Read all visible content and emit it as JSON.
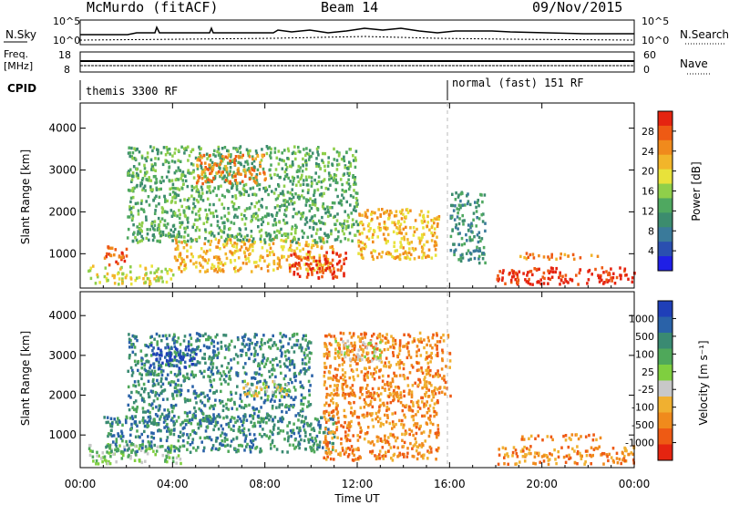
{
  "header": {
    "station": "McMurdo (fitACF)",
    "beam": "Beam 14",
    "date": "09/Nov/2015"
  },
  "summary_panels": {
    "nsky_label": "N.Sky",
    "nsky_ticks": [
      "10^5",
      "10^0"
    ],
    "nsearch_label": "N.Search",
    "nsearch_ticks": [
      "10^5",
      "10^0"
    ],
    "freq_label_1": "Freq.",
    "freq_label_2": "[MHz]",
    "freq_ticks": [
      "18",
      "8"
    ],
    "nave_label": "Nave",
    "nave_ticks": [
      "60",
      "0"
    ],
    "cpid_label": "CPID",
    "cpid_modes": [
      "themis 3300 RF",
      "normal (fast) 151 RF"
    ]
  },
  "chart_data": [
    {
      "type": "heatmap",
      "title": "",
      "xlabel": "",
      "ylabel": "Slant Range [km]",
      "x_ticks": [
        "00:00",
        "04:00",
        "08:00",
        "12:00",
        "16:00",
        "20:00",
        "00:00"
      ],
      "y_ticks": [
        "1000",
        "2000",
        "3000",
        "4000"
      ],
      "xlim_hours": [
        0,
        24
      ],
      "ylim_km": [
        180,
        4600
      ],
      "colorbar": {
        "label": "Power [dB]",
        "ticks": [
          "4",
          "8",
          "12",
          "16",
          "20",
          "24",
          "28"
        ],
        "colors": [
          "#1f1fe6",
          "#2a4fb0",
          "#3a7a9a",
          "#3c8c6e",
          "#4fa860",
          "#8fcf4a",
          "#e8e23a",
          "#f2b52a",
          "#f08a1c",
          "#ee5a14",
          "#e52410"
        ]
      },
      "regions": [
        {
          "t0": 0.3,
          "t1": 4.0,
          "r0": 300,
          "r1": 750,
          "level": 6
        },
        {
          "t0": 1.0,
          "t1": 2.0,
          "r0": 750,
          "r1": 1200,
          "level": 9
        },
        {
          "t0": 4.0,
          "t1": 11.0,
          "r0": 600,
          "r1": 1400,
          "level": 7
        },
        {
          "t0": 9.0,
          "t1": 11.5,
          "r0": 450,
          "r1": 1100,
          "level": 10
        },
        {
          "t0": 12.0,
          "t1": 15.5,
          "r0": 900,
          "r1": 2100,
          "level": 7
        },
        {
          "t0": 2.0,
          "t1": 12.0,
          "r0": 1300,
          "r1": 3600,
          "level": 4
        },
        {
          "t0": 5.0,
          "t1": 8.0,
          "r0": 2700,
          "r1": 3400,
          "level": 8
        },
        {
          "t0": 18.0,
          "t1": 24.0,
          "r0": 300,
          "r1": 700,
          "level": 10
        },
        {
          "t0": 19.0,
          "t1": 22.5,
          "r0": 900,
          "r1": 1050,
          "level": 8
        },
        {
          "t0": 16.0,
          "t1": 17.5,
          "r0": 800,
          "r1": 2500,
          "level": 3
        }
      ]
    },
    {
      "type": "heatmap",
      "title": "",
      "xlabel": "Time UT",
      "ylabel": "Slant Range [km]",
      "x_ticks": [
        "00:00",
        "04:00",
        "08:00",
        "12:00",
        "16:00",
        "20:00",
        "00:00"
      ],
      "y_ticks": [
        "1000",
        "2000",
        "3000",
        "4000"
      ],
      "xlim_hours": [
        0,
        24
      ],
      "ylim_km": [
        180,
        4600
      ],
      "colorbar": {
        "label": "Velocity [m s⁻¹]",
        "ticks": [
          "1000",
          "500",
          "100",
          "25",
          "-25",
          "-100",
          "-500",
          "-1000"
        ],
        "colors": [
          "#1f3fb8",
          "#2a62a8",
          "#3a8a72",
          "#4fa85a",
          "#7fcf3f",
          "#c8c8c8",
          "#f0b030",
          "#f08a1c",
          "#ee5a14",
          "#e52410"
        ]
      },
      "regions": [
        {
          "t0": 0.3,
          "t1": 4.5,
          "r0": 300,
          "r1": 800,
          "level": 4
        },
        {
          "t0": 1.0,
          "t1": 11.0,
          "r0": 600,
          "r1": 1500,
          "level": 2
        },
        {
          "t0": 2.0,
          "t1": 10.0,
          "r0": 1300,
          "r1": 3600,
          "level": 2
        },
        {
          "t0": 3.0,
          "t1": 5.0,
          "r0": 2700,
          "r1": 3300,
          "level": 0
        },
        {
          "t0": 7.0,
          "t1": 9.0,
          "r0": 2000,
          "r1": 2400,
          "level": 5
        },
        {
          "t0": 10.5,
          "t1": 15.5,
          "r0": 400,
          "r1": 2100,
          "level": 7
        },
        {
          "t0": 10.5,
          "t1": 16.0,
          "r0": 2000,
          "r1": 3600,
          "level": 7
        },
        {
          "t0": 11.0,
          "t1": 13.0,
          "r0": 2900,
          "r1": 3400,
          "level": 5
        },
        {
          "t0": 18.0,
          "t1": 24.0,
          "r0": 300,
          "r1": 750,
          "level": 7
        },
        {
          "t0": 19.0,
          "t1": 22.5,
          "r0": 900,
          "r1": 1050,
          "level": 7
        }
      ]
    }
  ]
}
